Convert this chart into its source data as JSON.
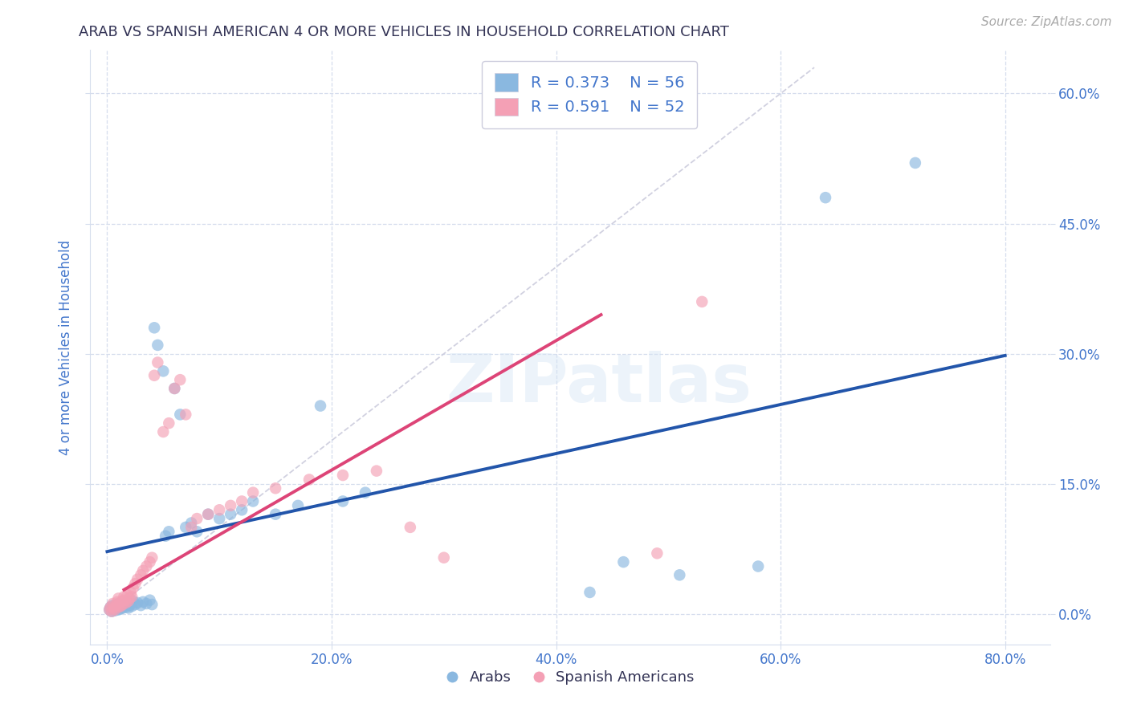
{
  "title": "ARAB VS SPANISH AMERICAN 4 OR MORE VEHICLES IN HOUSEHOLD CORRELATION CHART",
  "source": "Source: ZipAtlas.com",
  "xlabel_ticks": [
    "0.0%",
    "20.0%",
    "40.0%",
    "60.0%",
    "80.0%"
  ],
  "xlabel_tick_vals": [
    0.0,
    0.2,
    0.4,
    0.6,
    0.8
  ],
  "ylabel_ticks": [
    "0.0%",
    "15.0%",
    "30.0%",
    "45.0%",
    "60.0%"
  ],
  "ylabel_tick_vals": [
    0.0,
    0.15,
    0.3,
    0.45,
    0.6
  ],
  "xlim": [
    -0.015,
    0.84
  ],
  "ylim": [
    -0.035,
    0.65
  ],
  "R_arab": 0.373,
  "N_arab": 56,
  "R_spanish": 0.591,
  "N_spanish": 52,
  "arab_color": "#8ab8e0",
  "spanish_color": "#f4a0b5",
  "arab_line_color": "#2255aa",
  "spanish_line_color": "#dd4477",
  "diagonal_color": "#ccccdd",
  "watermark_text": "ZIPatlas",
  "arab_line_x0": 0.0,
  "arab_line_x1": 0.8,
  "arab_line_y0": 0.072,
  "arab_line_y1": 0.298,
  "spanish_line_x0": 0.015,
  "spanish_line_x1": 0.44,
  "spanish_line_y0": 0.028,
  "spanish_line_y1": 0.345,
  "arab_x": [
    0.002,
    0.003,
    0.004,
    0.005,
    0.006,
    0.007,
    0.008,
    0.009,
    0.01,
    0.01,
    0.011,
    0.012,
    0.013,
    0.014,
    0.015,
    0.016,
    0.017,
    0.018,
    0.019,
    0.02,
    0.021,
    0.022,
    0.023,
    0.025,
    0.027,
    0.03,
    0.032,
    0.035,
    0.038,
    0.04,
    0.042,
    0.045,
    0.05,
    0.052,
    0.055,
    0.06,
    0.065,
    0.07,
    0.075,
    0.08,
    0.09,
    0.1,
    0.11,
    0.12,
    0.13,
    0.15,
    0.17,
    0.19,
    0.21,
    0.23,
    0.43,
    0.46,
    0.51,
    0.58,
    0.64,
    0.72
  ],
  "arab_y": [
    0.005,
    0.008,
    0.003,
    0.01,
    0.006,
    0.004,
    0.007,
    0.009,
    0.005,
    0.012,
    0.008,
    0.006,
    0.01,
    0.007,
    0.009,
    0.011,
    0.008,
    0.013,
    0.007,
    0.01,
    0.012,
    0.009,
    0.015,
    0.011,
    0.013,
    0.01,
    0.014,
    0.012,
    0.016,
    0.011,
    0.33,
    0.31,
    0.28,
    0.09,
    0.095,
    0.26,
    0.23,
    0.1,
    0.105,
    0.095,
    0.115,
    0.11,
    0.115,
    0.12,
    0.13,
    0.115,
    0.125,
    0.24,
    0.13,
    0.14,
    0.025,
    0.06,
    0.045,
    0.055,
    0.48,
    0.52
  ],
  "spanish_x": [
    0.002,
    0.003,
    0.004,
    0.005,
    0.006,
    0.007,
    0.008,
    0.009,
    0.01,
    0.01,
    0.011,
    0.012,
    0.013,
    0.014,
    0.015,
    0.016,
    0.017,
    0.018,
    0.019,
    0.02,
    0.021,
    0.022,
    0.023,
    0.025,
    0.027,
    0.03,
    0.032,
    0.035,
    0.038,
    0.04,
    0.042,
    0.045,
    0.05,
    0.055,
    0.06,
    0.065,
    0.07,
    0.075,
    0.08,
    0.09,
    0.1,
    0.11,
    0.12,
    0.13,
    0.15,
    0.18,
    0.21,
    0.24,
    0.27,
    0.3,
    0.49,
    0.53
  ],
  "spanish_y": [
    0.005,
    0.008,
    0.003,
    0.012,
    0.007,
    0.005,
    0.01,
    0.014,
    0.008,
    0.018,
    0.012,
    0.009,
    0.015,
    0.011,
    0.02,
    0.016,
    0.013,
    0.022,
    0.015,
    0.018,
    0.025,
    0.02,
    0.03,
    0.035,
    0.04,
    0.045,
    0.05,
    0.055,
    0.06,
    0.065,
    0.275,
    0.29,
    0.21,
    0.22,
    0.26,
    0.27,
    0.23,
    0.1,
    0.11,
    0.115,
    0.12,
    0.125,
    0.13,
    0.14,
    0.145,
    0.155,
    0.16,
    0.165,
    0.1,
    0.065,
    0.07,
    0.36
  ],
  "legend_arab_label": "Arabs",
  "legend_spanish_label": "Spanish Americans",
  "ylabel": "4 or more Vehicles in Household",
  "title_color": "#333355",
  "tick_color": "#4477cc",
  "grid_color": "#d5dded",
  "source_color": "#aaaaaa",
  "title_fontsize": 13,
  "tick_fontsize": 12,
  "ylabel_fontsize": 12
}
